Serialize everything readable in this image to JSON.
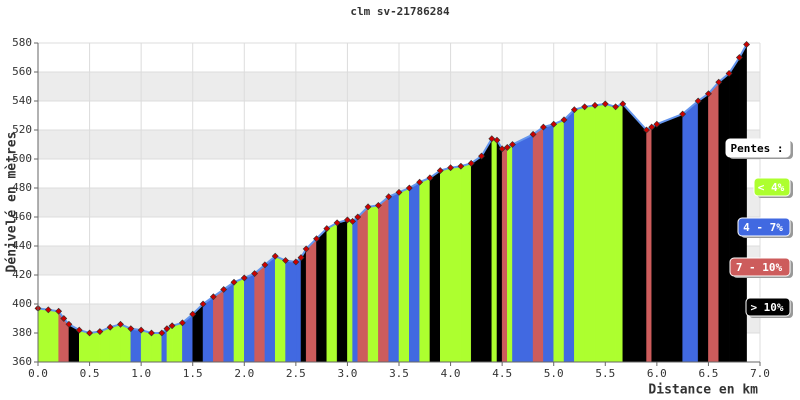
{
  "chart_data": {
    "type": "area",
    "title": "clm sv-21786284",
    "x_label": "Distance en km",
    "y_label": "Dénivelé en mètres",
    "x": [
      0,
      0.1,
      0.2,
      0.25,
      0.3,
      0.4,
      0.5,
      0.6,
      0.7,
      0.8,
      0.9,
      1.0,
      1.1,
      1.2,
      1.25,
      1.3,
      1.4,
      1.5,
      1.6,
      1.7,
      1.8,
      1.9,
      2.0,
      2.1,
      2.2,
      2.3,
      2.4,
      2.5,
      2.55,
      2.6,
      2.7,
      2.8,
      2.9,
      3.0,
      3.05,
      3.1,
      3.2,
      3.3,
      3.4,
      3.5,
      3.6,
      3.7,
      3.8,
      3.9,
      4.0,
      4.1,
      4.2,
      4.3,
      4.4,
      4.45,
      4.5,
      4.55,
      4.6,
      4.8,
      4.9,
      5.0,
      5.1,
      5.2,
      5.3,
      5.4,
      5.5,
      5.6,
      5.67,
      5.9,
      5.95,
      6.0,
      6.25,
      6.4,
      6.5,
      6.6,
      6.7,
      6.8,
      6.87
    ],
    "y": [
      397,
      396,
      395,
      390,
      386,
      382,
      380,
      381,
      384,
      386,
      383,
      382,
      380,
      380,
      383,
      385,
      387,
      393,
      400,
      405,
      410,
      415,
      418,
      421,
      427,
      433,
      430,
      429,
      432,
      438,
      445,
      452,
      456,
      458,
      457,
      460,
      467,
      468,
      474,
      477,
      480,
      484,
      487,
      492,
      494,
      495,
      497,
      502,
      514,
      513,
      507,
      508,
      510,
      517,
      522,
      524,
      527,
      534,
      536,
      537,
      538,
      536,
      538,
      520,
      522,
      524,
      531,
      540,
      545,
      553,
      559,
      570,
      579
    ],
    "slope_class": [
      null,
      0,
      0,
      2,
      2,
      3,
      0,
      0,
      0,
      0,
      0,
      1,
      0,
      0,
      1,
      0,
      0,
      1,
      3,
      1,
      2,
      1,
      0,
      1,
      2,
      1,
      0,
      1,
      1,
      3,
      2,
      3,
      0,
      3,
      0,
      1,
      2,
      0,
      2,
      1,
      0,
      1,
      0,
      3,
      0,
      0,
      0,
      3,
      3,
      0,
      3,
      2,
      0,
      1,
      2,
      1,
      0,
      1,
      0,
      0,
      0,
      0,
      0,
      3,
      2,
      3,
      3,
      1,
      3,
      2,
      3,
      3,
      3
    ],
    "line_color": "#6495ed",
    "marker_color": "#cc0000",
    "legend": {
      "title": "Pentes :",
      "position": "right",
      "items": [
        {
          "label": "< 4%",
          "color": "#adff2f"
        },
        {
          "label": "4 - 7%",
          "color": "#4169e1"
        },
        {
          "label": "7 - 10%",
          "color": "#cd5c5c"
        },
        {
          "label": "> 10%",
          "color": "#000000"
        }
      ]
    },
    "xlim": [
      0,
      7
    ],
    "ylim": [
      360,
      580
    ],
    "xticks": [
      {
        "value": 0,
        "label": "0.0"
      },
      0.5,
      {
        "value": 1,
        "label": "1.0"
      },
      1.5,
      {
        "value": 2,
        "label": "2.0"
      },
      2.5,
      {
        "value": 3,
        "label": "3.0"
      },
      3.5,
      {
        "value": 4,
        "label": "4.0"
      },
      4.5,
      {
        "value": 5,
        "label": "5.0"
      },
      5.5,
      {
        "value": 6,
        "label": "6.0"
      },
      6.5,
      {
        "value": 7,
        "label": "7.0"
      }
    ],
    "yticks": [
      360,
      380,
      400,
      420,
      440,
      460,
      480,
      500,
      520,
      540,
      560,
      580
    ],
    "grid": true
  }
}
